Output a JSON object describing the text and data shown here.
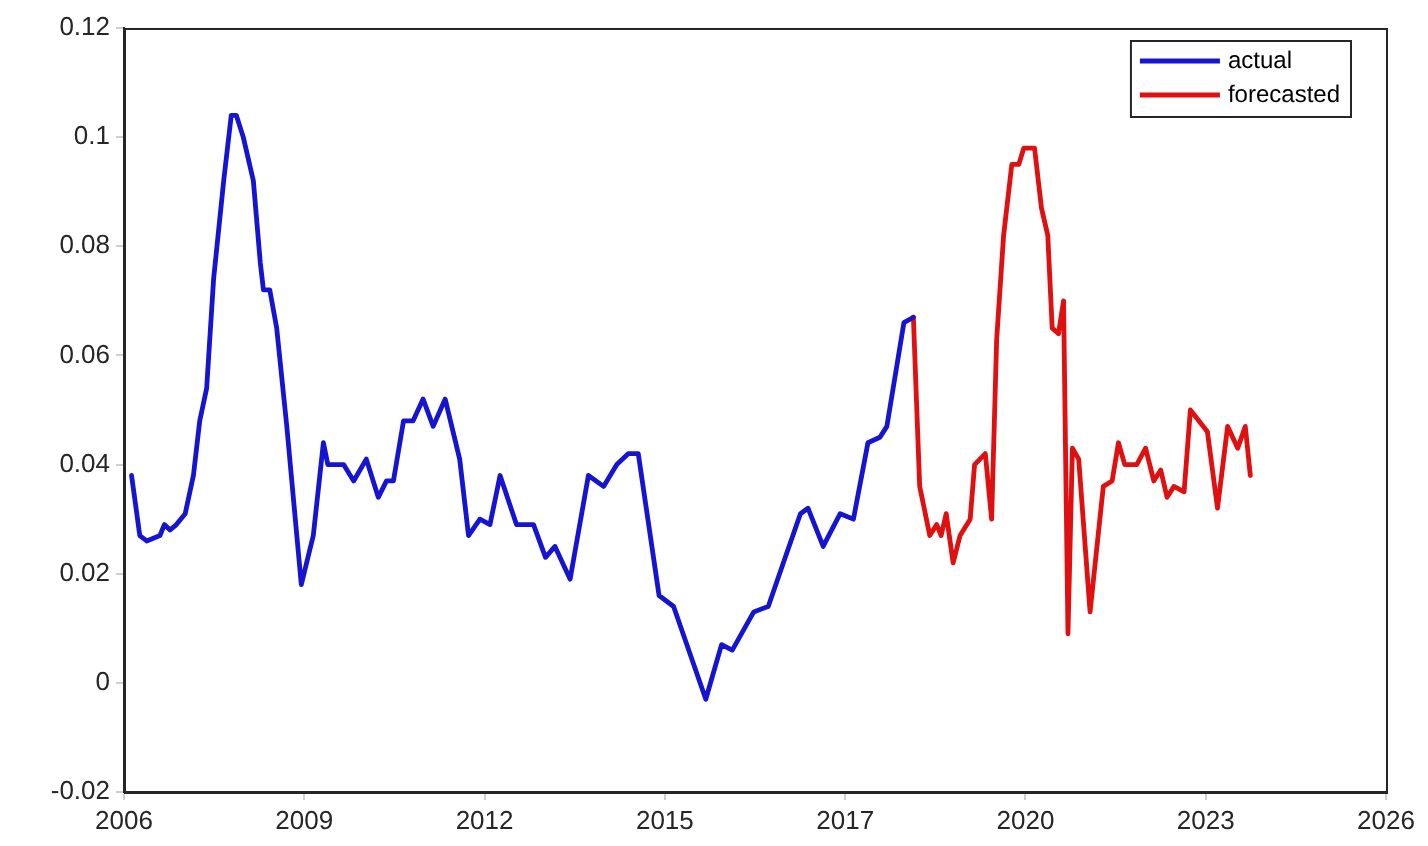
{
  "chart_data": {
    "type": "line",
    "xlim": [
      2006,
      2026
    ],
    "ylim": [
      -0.02,
      0.12
    ],
    "xticks": [
      2006,
      {
        "value": 2008.857,
        "label": "2009"
      },
      {
        "value": 2011.714,
        "label": "2012"
      },
      {
        "value": 2014.571,
        "label": "2015"
      },
      {
        "value": 2017.429,
        "label": "2017"
      },
      {
        "value": 2020.286,
        "label": "2020"
      },
      {
        "value": 2023.143,
        "label": "2023"
      },
      2026
    ],
    "yticks": [
      -0.02,
      0,
      0.02,
      0.04,
      0.06,
      0.08,
      0.1,
      0.12
    ],
    "legend": "top right",
    "series": [
      {
        "name": "actual",
        "color": "#1414d2",
        "x": [
          2006.12,
          2006.25,
          2006.36,
          2006.57,
          2006.64,
          2006.73,
          2006.83,
          2006.97,
          2007.1,
          2007.2,
          2007.31,
          2007.42,
          2007.58,
          2007.7,
          2007.78,
          2007.89,
          2008.05,
          2008.16,
          2008.21,
          2008.31,
          2008.42,
          2008.58,
          2008.81,
          2009.0,
          2009.16,
          2009.23,
          2009.48,
          2009.64,
          2009.84,
          2010.03,
          2010.16,
          2010.27,
          2010.43,
          2010.58,
          2010.74,
          2010.9,
          2011.09,
          2011.32,
          2011.46,
          2011.64,
          2011.8,
          2011.96,
          2012.22,
          2012.49,
          2012.68,
          2012.83,
          2013.07,
          2013.36,
          2013.6,
          2013.81,
          2013.99,
          2014.15,
          2014.48,
          2014.71,
          2015.22,
          2015.47,
          2015.64,
          2015.98,
          2016.21,
          2016.45,
          2016.72,
          2016.84,
          2017.08,
          2017.35,
          2017.56,
          2017.79,
          2017.98,
          2018.09,
          2018.36,
          2018.51
        ],
        "values": [
          0.038,
          0.027,
          0.026,
          0.027,
          0.029,
          0.028,
          0.029,
          0.031,
          0.038,
          0.048,
          0.054,
          0.074,
          0.092,
          0.104,
          0.104,
          0.1,
          0.092,
          0.077,
          0.072,
          0.072,
          0.065,
          0.047,
          0.018,
          0.027,
          0.044,
          0.04,
          0.04,
          0.037,
          0.041,
          0.034,
          0.037,
          0.037,
          0.048,
          0.048,
          0.052,
          0.047,
          0.052,
          0.041,
          0.027,
          0.03,
          0.029,
          0.038,
          0.029,
          0.029,
          0.023,
          0.025,
          0.019,
          0.038,
          0.036,
          0.04,
          0.042,
          0.042,
          0.016,
          0.014,
          -0.003,
          0.007,
          0.006,
          0.013,
          0.014,
          0.022,
          0.031,
          0.032,
          0.025,
          0.031,
          0.03,
          0.044,
          0.045,
          0.047,
          0.066,
          0.067
        ]
      },
      {
        "name": "forecasted",
        "color": "#e01010",
        "x": [
          2018.51,
          2018.61,
          2018.77,
          2018.88,
          2018.95,
          2019.03,
          2019.14,
          2019.25,
          2019.41,
          2019.48,
          2019.65,
          2019.75,
          2019.83,
          2019.94,
          2020.07,
          2020.18,
          2020.26,
          2020.43,
          2020.54,
          2020.64,
          2020.71,
          2020.81,
          2020.89,
          2020.96,
          2021.03,
          2021.13,
          2021.31,
          2021.52,
          2021.66,
          2021.76,
          2021.86,
          2022.05,
          2022.19,
          2022.32,
          2022.43,
          2022.53,
          2022.64,
          2022.8,
          2022.9,
          2023.17,
          2023.33,
          2023.49,
          2023.65,
          2023.77,
          2023.85
        ],
        "values": [
          0.067,
          0.036,
          0.027,
          0.029,
          0.027,
          0.031,
          0.022,
          0.027,
          0.03,
          0.04,
          0.042,
          0.03,
          0.063,
          0.082,
          0.095,
          0.095,
          0.098,
          0.098,
          0.087,
          0.082,
          0.065,
          0.064,
          0.07,
          0.009,
          0.043,
          0.041,
          0.013,
          0.036,
          0.037,
          0.044,
          0.04,
          0.04,
          0.043,
          0.037,
          0.039,
          0.034,
          0.036,
          0.035,
          0.05,
          0.046,
          0.032,
          0.047,
          0.043,
          0.047,
          0.038
        ]
      }
    ]
  }
}
